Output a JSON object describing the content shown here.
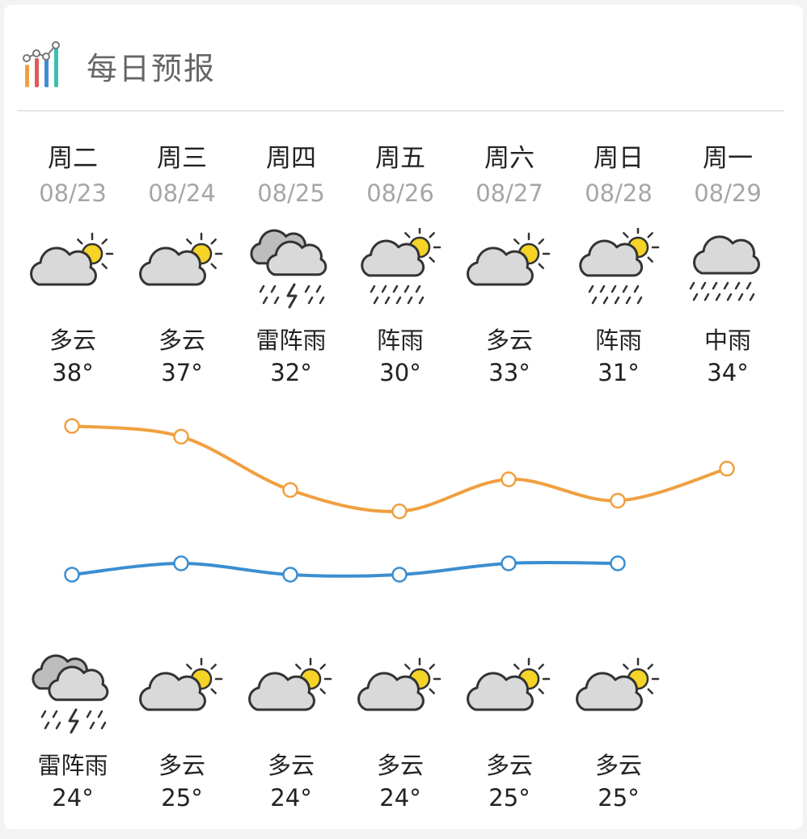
{
  "header": {
    "title": "每日预报",
    "icon": "bar-chart-icon"
  },
  "days": [
    {
      "day": "周二",
      "date": "08/23",
      "day_cond": "多云",
      "day_icon": "partly-cloudy-icon",
      "high": "38°",
      "night_cond": "雷阵雨",
      "night_icon": "thunder-shower-icon",
      "low": "24°"
    },
    {
      "day": "周三",
      "date": "08/24",
      "day_cond": "多云",
      "day_icon": "partly-cloudy-icon",
      "high": "37°",
      "night_cond": "多云",
      "night_icon": "partly-cloudy-icon",
      "low": "25°"
    },
    {
      "day": "周四",
      "date": "08/25",
      "day_cond": "雷阵雨",
      "day_icon": "thunder-shower-icon",
      "high": "32°",
      "night_cond": "多云",
      "night_icon": "partly-cloudy-icon",
      "low": "24°"
    },
    {
      "day": "周五",
      "date": "08/26",
      "day_cond": "阵雨",
      "day_icon": "shower-icon",
      "high": "30°",
      "night_cond": "多云",
      "night_icon": "partly-cloudy-icon",
      "low": "24°"
    },
    {
      "day": "周六",
      "date": "08/27",
      "day_cond": "多云",
      "day_icon": "partly-cloudy-icon",
      "high": "33°",
      "night_cond": "多云",
      "night_icon": "partly-cloudy-icon",
      "low": "25°"
    },
    {
      "day": "周日",
      "date": "08/28",
      "day_cond": "阵雨",
      "day_icon": "shower-icon",
      "high": "31°",
      "night_cond": "多云",
      "night_icon": "partly-cloudy-icon",
      "low": "25°"
    },
    {
      "day": "周一",
      "date": "08/29",
      "day_cond": "中雨",
      "day_icon": "moderate-rain-icon",
      "high": "34°",
      "night_cond": "",
      "night_icon": "",
      "low": ""
    }
  ],
  "chart_data": {
    "type": "line",
    "x": [
      "08/23",
      "08/24",
      "08/25",
      "08/26",
      "08/27",
      "08/28",
      "08/29"
    ],
    "series": [
      {
        "values": [
          38,
          37,
          32,
          30,
          33,
          31,
          34
        ],
        "color": "#f0a040"
      },
      {
        "values": [
          24,
          25,
          24,
          24,
          25,
          25,
          null
        ],
        "color": "#3b8ed0"
      }
    ]
  }
}
